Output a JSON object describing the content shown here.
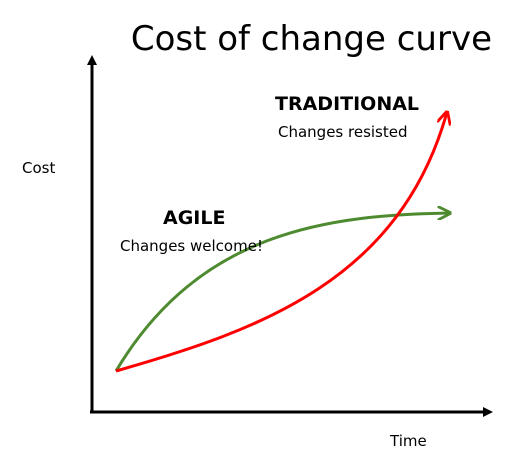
{
  "title": "Cost of change curve",
  "axes": {
    "y_label": "Cost",
    "x_label": "Time"
  },
  "annotations": [
    {
      "title": "TRADITIONAL",
      "text": "Changes resisted"
    },
    {
      "title": "AGILE",
      "text": "Changes welcome!"
    }
  ]
}
